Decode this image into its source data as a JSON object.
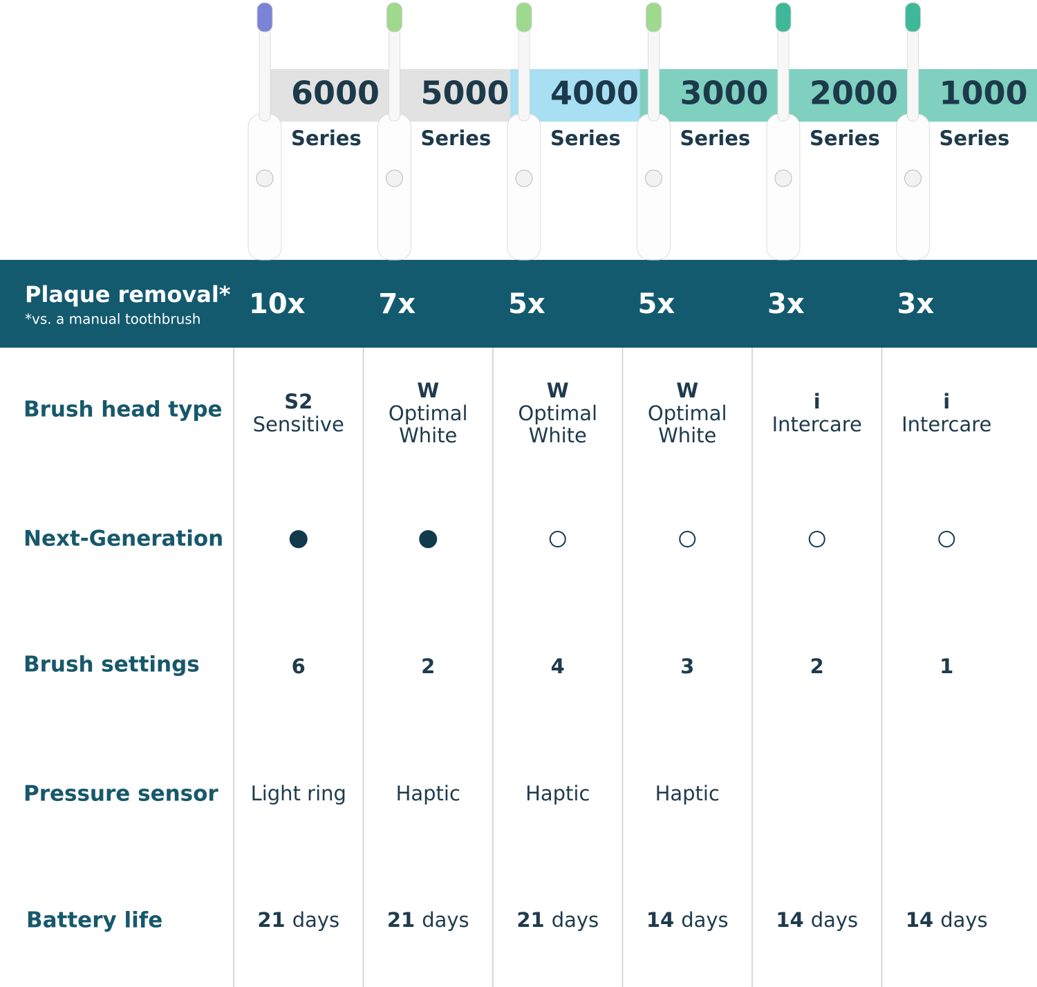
{
  "header": {
    "plaque_label": "Plaque removal*",
    "plaque_note": "*vs. a manual toothbrush"
  },
  "row_labels": {
    "brush_head": "Brush head type",
    "next_gen": "Next-Generation",
    "settings": "Brush settings",
    "pressure": "Pressure sensor",
    "battery": "Battery life"
  },
  "products": [
    {
      "number": "6000",
      "series": "Series",
      "band_color": "#e2e2e2",
      "head_color": "#7b83d6",
      "plaque": "10x",
      "head_code": "S2",
      "head_name": [
        "Sensitive"
      ],
      "next_gen": true,
      "settings": "6",
      "pressure": "Light ring",
      "battery_num": "21",
      "battery_unit": "days"
    },
    {
      "number": "5000",
      "series": "Series",
      "band_color": "#e2e2e2",
      "head_color": "#9ed98e",
      "plaque": "7x",
      "head_code": "W",
      "head_name": [
        "Optimal",
        "White"
      ],
      "next_gen": true,
      "settings": "2",
      "pressure": "Haptic",
      "battery_num": "21",
      "battery_unit": "days"
    },
    {
      "number": "4000",
      "series": "Series",
      "band_color": "#a8dff2",
      "head_color": "#9ed98e",
      "plaque": "5x",
      "head_code": "W",
      "head_name": [
        "Optimal",
        "White"
      ],
      "next_gen": false,
      "settings": "4",
      "pressure": "Haptic",
      "battery_num": "21",
      "battery_unit": "days"
    },
    {
      "number": "3000",
      "series": "Series",
      "band_color": "#7fd0bf",
      "head_color": "#9ed98e",
      "plaque": "5x",
      "head_code": "W",
      "head_name": [
        "Optimal",
        "White"
      ],
      "next_gen": false,
      "settings": "3",
      "pressure": "Haptic",
      "battery_num": "14",
      "battery_unit": "days"
    },
    {
      "number": "2000",
      "series": "Series",
      "band_color": "#7fd0bf",
      "head_color": "#3fb89a",
      "plaque": "3x",
      "head_code": "i",
      "head_name": [
        "Intercare"
      ],
      "next_gen": false,
      "settings": "2",
      "pressure": null,
      "battery_num": "14",
      "battery_unit": "days"
    },
    {
      "number": "1000",
      "series": "Series",
      "band_color": "#7fd0bf",
      "head_color": "#3fb89a",
      "plaque": "3x",
      "head_code": "i",
      "head_name": [
        "Intercare"
      ],
      "next_gen": false,
      "settings": "1",
      "pressure": null,
      "battery_num": "14",
      "battery_unit": "days"
    }
  ]
}
